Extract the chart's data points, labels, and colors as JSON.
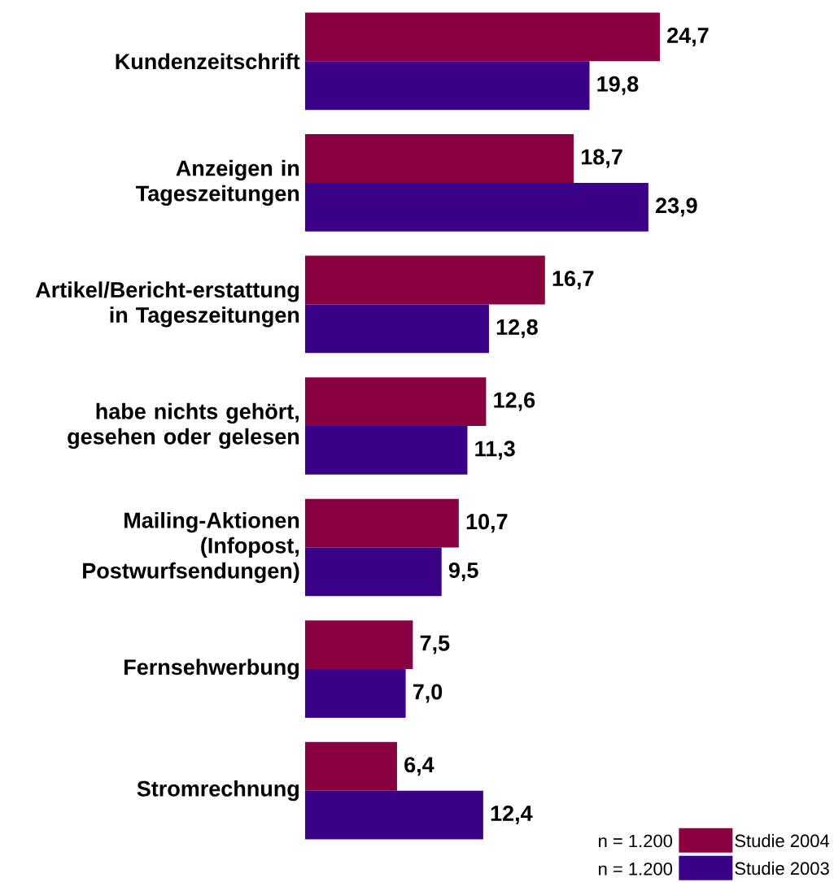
{
  "chart_data": {
    "type": "bar",
    "orientation": "horizontal",
    "categories": [
      "Kundenzeitschrift",
      "Anzeigen in Tageszeitungen",
      "Artikel/Bericht-erstattung in Tageszeitungen",
      "habe nichts gehört, gesehen oder gelesen",
      "Mailing-Aktionen (Infopost, Postwurfsendungen)",
      "Fernsehwerbung",
      "Stromrechnung"
    ],
    "series": [
      {
        "name": "Studie 2004",
        "color": "#880040",
        "values": [
          24.7,
          18.7,
          16.7,
          12.6,
          10.7,
          7.5,
          6.4
        ],
        "value_labels": [
          "24,7",
          "18,7",
          "16,7",
          "12,6",
          "10,7",
          "7,5",
          "6,4"
        ]
      },
      {
        "name": "Studie 2003",
        "color": "#3a0088",
        "values": [
          19.8,
          23.9,
          12.8,
          11.3,
          9.5,
          7.0,
          12.4
        ],
        "value_labels": [
          "19,8",
          "23,9",
          "12,8",
          "11,3",
          "9,5",
          "7,0",
          "12,4"
        ]
      }
    ],
    "legend": "bottom right",
    "annotations": [
      "n = 1.200",
      "n = 1.200"
    ]
  }
}
